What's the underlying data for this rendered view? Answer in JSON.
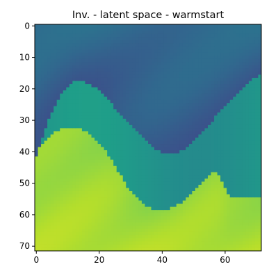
{
  "chart_data": {
    "type": "heatmap",
    "title": "Inv. - latent space - warmstart",
    "xlabel": "",
    "ylabel": "",
    "grid_size": 72,
    "xlim": [
      -0.5,
      71.5
    ],
    "ylim": [
      71.5,
      -0.5
    ],
    "x_ticks": [
      0,
      20,
      40,
      60
    ],
    "y_ticks": [
      0,
      10,
      20,
      30,
      40,
      50,
      60,
      70
    ],
    "colormap": "viridis",
    "colors": {
      "top_layer": "#2f6a8c",
      "middle_layer": "#1f9c8a",
      "bottom_layer": "#bde22e"
    },
    "layers": [
      {
        "name": "top",
        "value": 0.32,
        "boundary_depth": [
          42,
          39,
          36,
          33,
          30,
          28,
          26,
          24,
          22,
          21,
          20,
          19,
          18,
          18,
          18,
          18,
          19,
          19,
          20,
          20,
          21,
          22,
          23,
          24,
          25,
          27,
          28,
          29,
          30,
          31,
          32,
          33,
          34,
          35,
          36,
          37,
          38,
          39,
          40,
          40,
          41,
          41,
          41,
          41,
          41,
          41,
          40,
          40,
          39,
          38,
          37,
          36,
          35,
          34,
          33,
          32,
          31,
          29,
          28,
          27,
          26,
          25,
          24,
          23,
          22,
          21,
          20,
          19,
          18,
          17,
          17,
          16
        ]
      },
      {
        "name": "bottom",
        "value": 0.86,
        "boundary_depth": [
          40,
          39,
          38,
          37,
          36,
          35,
          34,
          34,
          33,
          33,
          33,
          33,
          33,
          33,
          33,
          34,
          34,
          35,
          36,
          37,
          38,
          39,
          40,
          42,
          43,
          45,
          47,
          48,
          50,
          52,
          53,
          54,
          55,
          56,
          57,
          58,
          58,
          59,
          59,
          59,
          59,
          59,
          59,
          58,
          58,
          57,
          57,
          56,
          55,
          54,
          53,
          52,
          51,
          50,
          49,
          48,
          47,
          47,
          48,
          50,
          52,
          54,
          55,
          55,
          55,
          55,
          55,
          55,
          55,
          55,
          55,
          55
        ]
      }
    ]
  }
}
